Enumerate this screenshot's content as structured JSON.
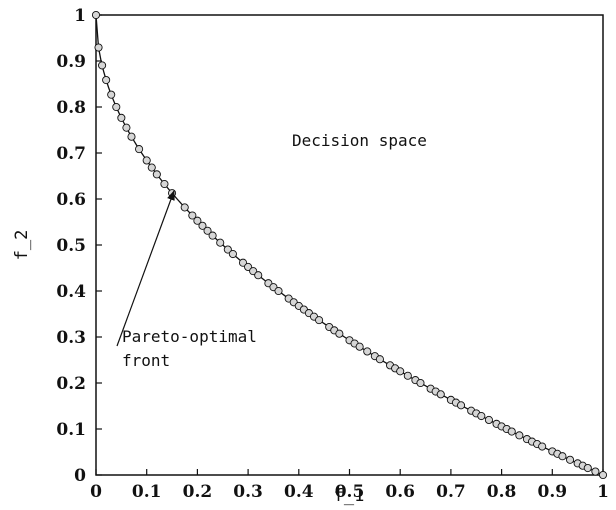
{
  "chart_data": {
    "type": "scatter",
    "title": "",
    "xlabel": "f_1",
    "ylabel": "f_2",
    "xlim": [
      0,
      1
    ],
    "ylim": [
      0,
      1
    ],
    "xticks": [
      "0",
      "0.1",
      "0.2",
      "0.3",
      "0.4",
      "0.5",
      "0.6",
      "0.7",
      "0.8",
      "0.9",
      "1"
    ],
    "yticks": [
      "0",
      "0.1",
      "0.2",
      "0.3",
      "0.4",
      "0.5",
      "0.6",
      "0.7",
      "0.8",
      "0.9",
      "1"
    ],
    "grid": false,
    "series": [
      {
        "curve": "f_2 = 1 - sqrt(f_1)",
        "x": [
          0,
          0.005,
          0.012,
          0.02,
          0.03,
          0.04,
          0.05,
          0.06,
          0.07,
          0.085,
          0.1,
          0.11,
          0.12,
          0.135,
          0.15,
          0.175,
          0.19,
          0.2,
          0.21,
          0.22,
          0.23,
          0.245,
          0.26,
          0.27,
          0.29,
          0.3,
          0.31,
          0.32,
          0.34,
          0.35,
          0.36,
          0.38,
          0.39,
          0.4,
          0.41,
          0.42,
          0.43,
          0.44,
          0.46,
          0.47,
          0.48,
          0.5,
          0.51,
          0.52,
          0.535,
          0.55,
          0.56,
          0.58,
          0.59,
          0.6,
          0.615,
          0.63,
          0.64,
          0.66,
          0.67,
          0.68,
          0.7,
          0.71,
          0.72,
          0.74,
          0.75,
          0.76,
          0.775,
          0.79,
          0.8,
          0.81,
          0.82,
          0.835,
          0.85,
          0.86,
          0.87,
          0.88,
          0.9,
          0.91,
          0.92,
          0.935,
          0.95,
          0.96,
          0.97,
          0.985,
          1.0
        ],
        "marker": "open-circle"
      }
    ],
    "annotations": [
      {
        "text_lines": [
          "Pareto-optimal",
          "front"
        ],
        "points_to_x": 0.155
      },
      {
        "text": "Decision space",
        "placement": "upper-right"
      }
    ]
  }
}
